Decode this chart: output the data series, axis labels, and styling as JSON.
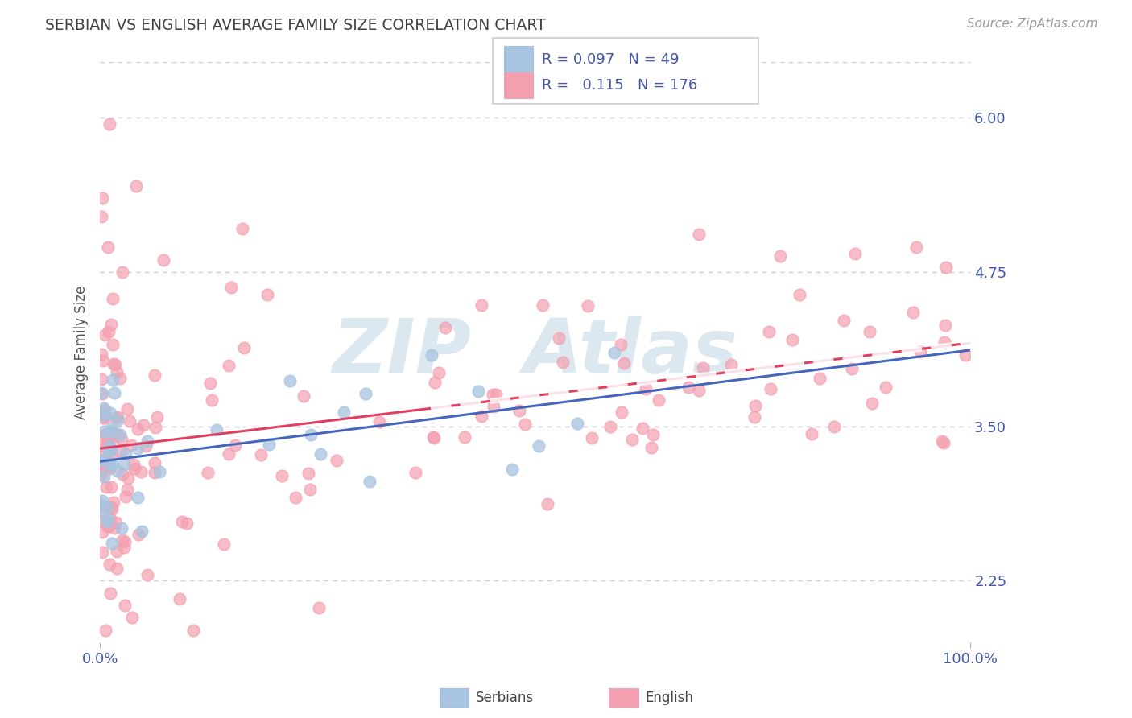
{
  "title": "SERBIAN VS ENGLISH AVERAGE FAMILY SIZE CORRELATION CHART",
  "source": "Source: ZipAtlas.com",
  "ylabel": "Average Family Size",
  "yticks": [
    2.25,
    3.5,
    4.75,
    6.0
  ],
  "xlim": [
    0.0,
    1.0
  ],
  "ylim": [
    1.75,
    6.45
  ],
  "xticklabels": [
    "0.0%",
    "100.0%"
  ],
  "legend_r1_val": "0.097",
  "legend_n1_val": "49",
  "legend_r2_val": "0.115",
  "legend_n2_val": "176",
  "serbian_color": "#a8c4e0",
  "english_color": "#f4a0b0",
  "serbian_line_color": "#4466bb",
  "english_line_color": "#e04060",
  "title_color": "#404040",
  "axis_label_color": "#4455aa",
  "background_color": "#ffffff",
  "grid_color": "#ccccdd",
  "watermark_color": "#dce8f0"
}
